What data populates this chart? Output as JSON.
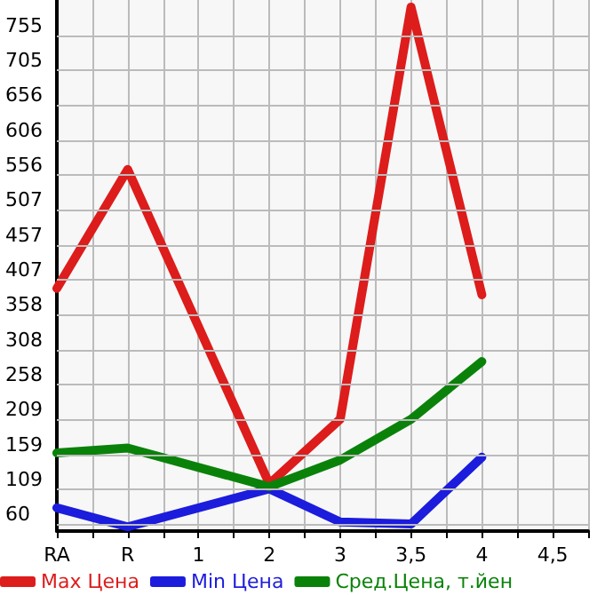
{
  "chart_data": {
    "type": "line",
    "categories": [
      "RA",
      "R",
      "1",
      "2",
      "3",
      "3,5",
      "4",
      "4,5"
    ],
    "series": [
      {
        "name": "Max Цена",
        "color": "#dd1c1c",
        "values": [
          395,
          564,
          null,
          117,
          209,
          795,
          386,
          null
        ]
      },
      {
        "name": "Min Цена",
        "color": "#1c1cdd",
        "values": [
          83,
          56,
          null,
          110,
          63,
          60,
          155,
          null
        ]
      },
      {
        "name": "Сред.Цена, т.йен",
        "color": "#0a820a",
        "values": [
          161,
          168,
          null,
          113,
          151,
          209,
          291,
          null
        ]
      }
    ],
    "ylim": [
      50,
      805
    ],
    "yticks": [
      60,
      109,
      159,
      209,
      258,
      308,
      358,
      407,
      457,
      507,
      556,
      606,
      656,
      705,
      755
    ],
    "grid": true,
    "legend": "bottom",
    "marker": "none",
    "line_style": "solid"
  }
}
